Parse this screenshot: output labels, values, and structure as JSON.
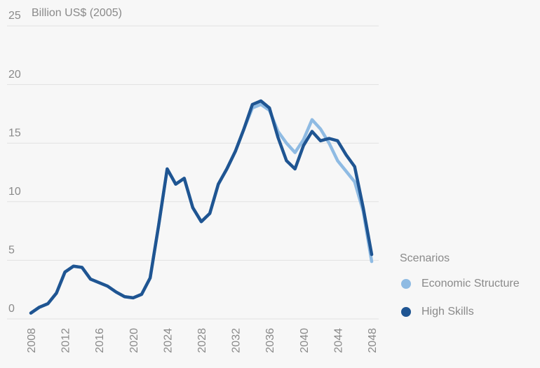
{
  "chart_data": {
    "type": "line",
    "y_label": "Billion US$ (2005)",
    "legend_title": "Scenarios",
    "x": [
      2008,
      2009,
      2010,
      2011,
      2012,
      2013,
      2014,
      2015,
      2016,
      2017,
      2018,
      2019,
      2020,
      2021,
      2022,
      2023,
      2024,
      2025,
      2026,
      2027,
      2028,
      2029,
      2030,
      2031,
      2032,
      2033,
      2034,
      2035,
      2036,
      2037,
      2038,
      2039,
      2040,
      2041,
      2042,
      2043,
      2044,
      2045,
      2046,
      2047,
      2048
    ],
    "xlim": [
      2008,
      2048
    ],
    "xticks": [
      2008,
      2012,
      2016,
      2020,
      2024,
      2028,
      2032,
      2036,
      2040,
      2044,
      2048
    ],
    "ylim": [
      0,
      25
    ],
    "yticks": [
      0,
      5,
      10,
      15,
      20,
      25
    ],
    "grid": true,
    "legend": "right",
    "series": [
      {
        "name": "Economic Structure",
        "color": "#8fbbe3",
        "values": [
          0.5,
          1.0,
          1.3,
          2.2,
          4.0,
          4.5,
          4.4,
          3.4,
          3.1,
          2.8,
          2.3,
          1.9,
          1.8,
          2.1,
          3.5,
          8.0,
          12.8,
          11.5,
          12.0,
          9.5,
          8.3,
          9.0,
          11.5,
          12.8,
          14.3,
          16.2,
          18.0,
          18.3,
          17.8,
          16.0,
          15.0,
          14.2,
          15.3,
          17.0,
          16.2,
          15.0,
          13.5,
          12.6,
          11.7,
          9.2,
          4.9
        ]
      },
      {
        "name": "High Skills",
        "color": "#1f5592",
        "values": [
          0.5,
          1.0,
          1.3,
          2.2,
          4.0,
          4.5,
          4.4,
          3.4,
          3.1,
          2.8,
          2.3,
          1.9,
          1.8,
          2.1,
          3.5,
          8.0,
          12.8,
          11.5,
          12.0,
          9.5,
          8.3,
          9.0,
          11.5,
          12.8,
          14.3,
          16.2,
          18.3,
          18.6,
          18.0,
          15.5,
          13.5,
          12.8,
          14.8,
          16.0,
          15.2,
          15.4,
          15.2,
          14.0,
          13.0,
          9.5,
          5.5
        ]
      }
    ]
  }
}
